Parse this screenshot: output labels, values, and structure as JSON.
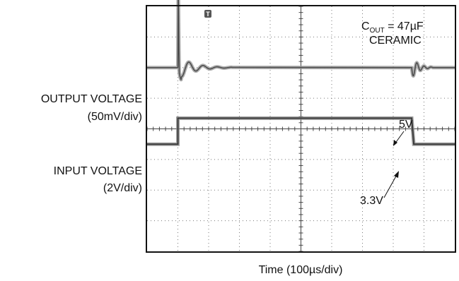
{
  "chart_data": {
    "type": "line",
    "title": "",
    "xlabel": "Time (100µs/div)",
    "x_divisions": 10,
    "y_divisions": 8,
    "grid": true,
    "trigger_marker": "T",
    "trigger_x_div": 1.0,
    "channels": [
      {
        "name": "OUTPUT VOLTAGE",
        "scale": "(50mV/div)",
        "baseline_div": 2.0,
        "events": [
          {
            "x_div": 1.0,
            "type": "undershoot_ring",
            "peak_div": -2.8,
            "undershoot_div": 0.35
          },
          {
            "x_div": 8.6,
            "type": "overshoot_ring",
            "peak_div": 0.35,
            "undershoot_div": -0.35
          }
        ]
      },
      {
        "name": "INPUT VOLTAGE",
        "scale": "(2V/div)",
        "low_level_div": 4.5,
        "high_level_div": 3.65,
        "rise_x_div": 1.0,
        "fall_x_div": 8.6
      }
    ],
    "annotations": {
      "cout_main": "C",
      "cout_sub": "OUT",
      "cout_rest": " = 47µF",
      "cout_type": "CERAMIC",
      "v_high": "5V",
      "v_low": "3.3V"
    }
  }
}
